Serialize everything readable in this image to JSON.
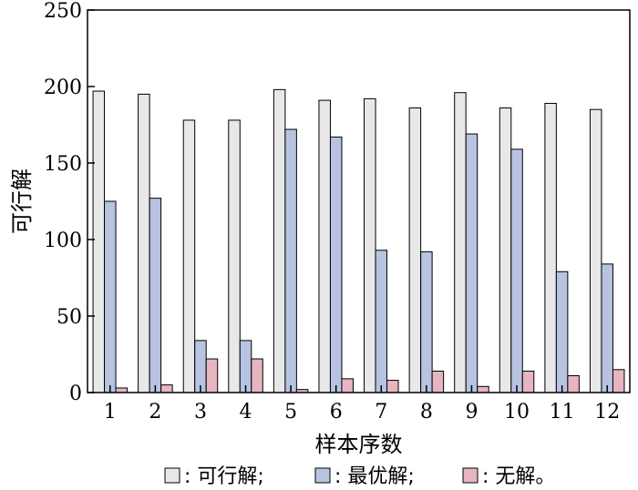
{
  "chart_data": {
    "type": "bar",
    "xlabel": "样本序数",
    "ylabel": "可行解",
    "ylim": [
      0,
      250
    ],
    "yticks": [
      0,
      50,
      100,
      150,
      200,
      250
    ],
    "categories": [
      "1",
      "2",
      "3",
      "4",
      "5",
      "6",
      "7",
      "8",
      "9",
      "10",
      "11",
      "12"
    ],
    "grid": false,
    "legend_placement": "bottom",
    "series": [
      {
        "name": "可行解",
        "legend_label": ": 可行解;",
        "color": "#e8e8e8",
        "values": [
          197,
          195,
          178,
          178,
          198,
          191,
          192,
          186,
          196,
          186,
          189,
          185
        ]
      },
      {
        "name": "最优解",
        "legend_label": ": 最优解;",
        "color": "#b7c3e1",
        "values": [
          125,
          127,
          34,
          34,
          172,
          167,
          93,
          92,
          169,
          159,
          79,
          84
        ]
      },
      {
        "name": "无解",
        "legend_label": ": 无解。",
        "color": "#e6b5bf",
        "values": [
          3,
          5,
          22,
          22,
          2,
          9,
          8,
          14,
          4,
          14,
          11,
          15
        ]
      }
    ]
  }
}
